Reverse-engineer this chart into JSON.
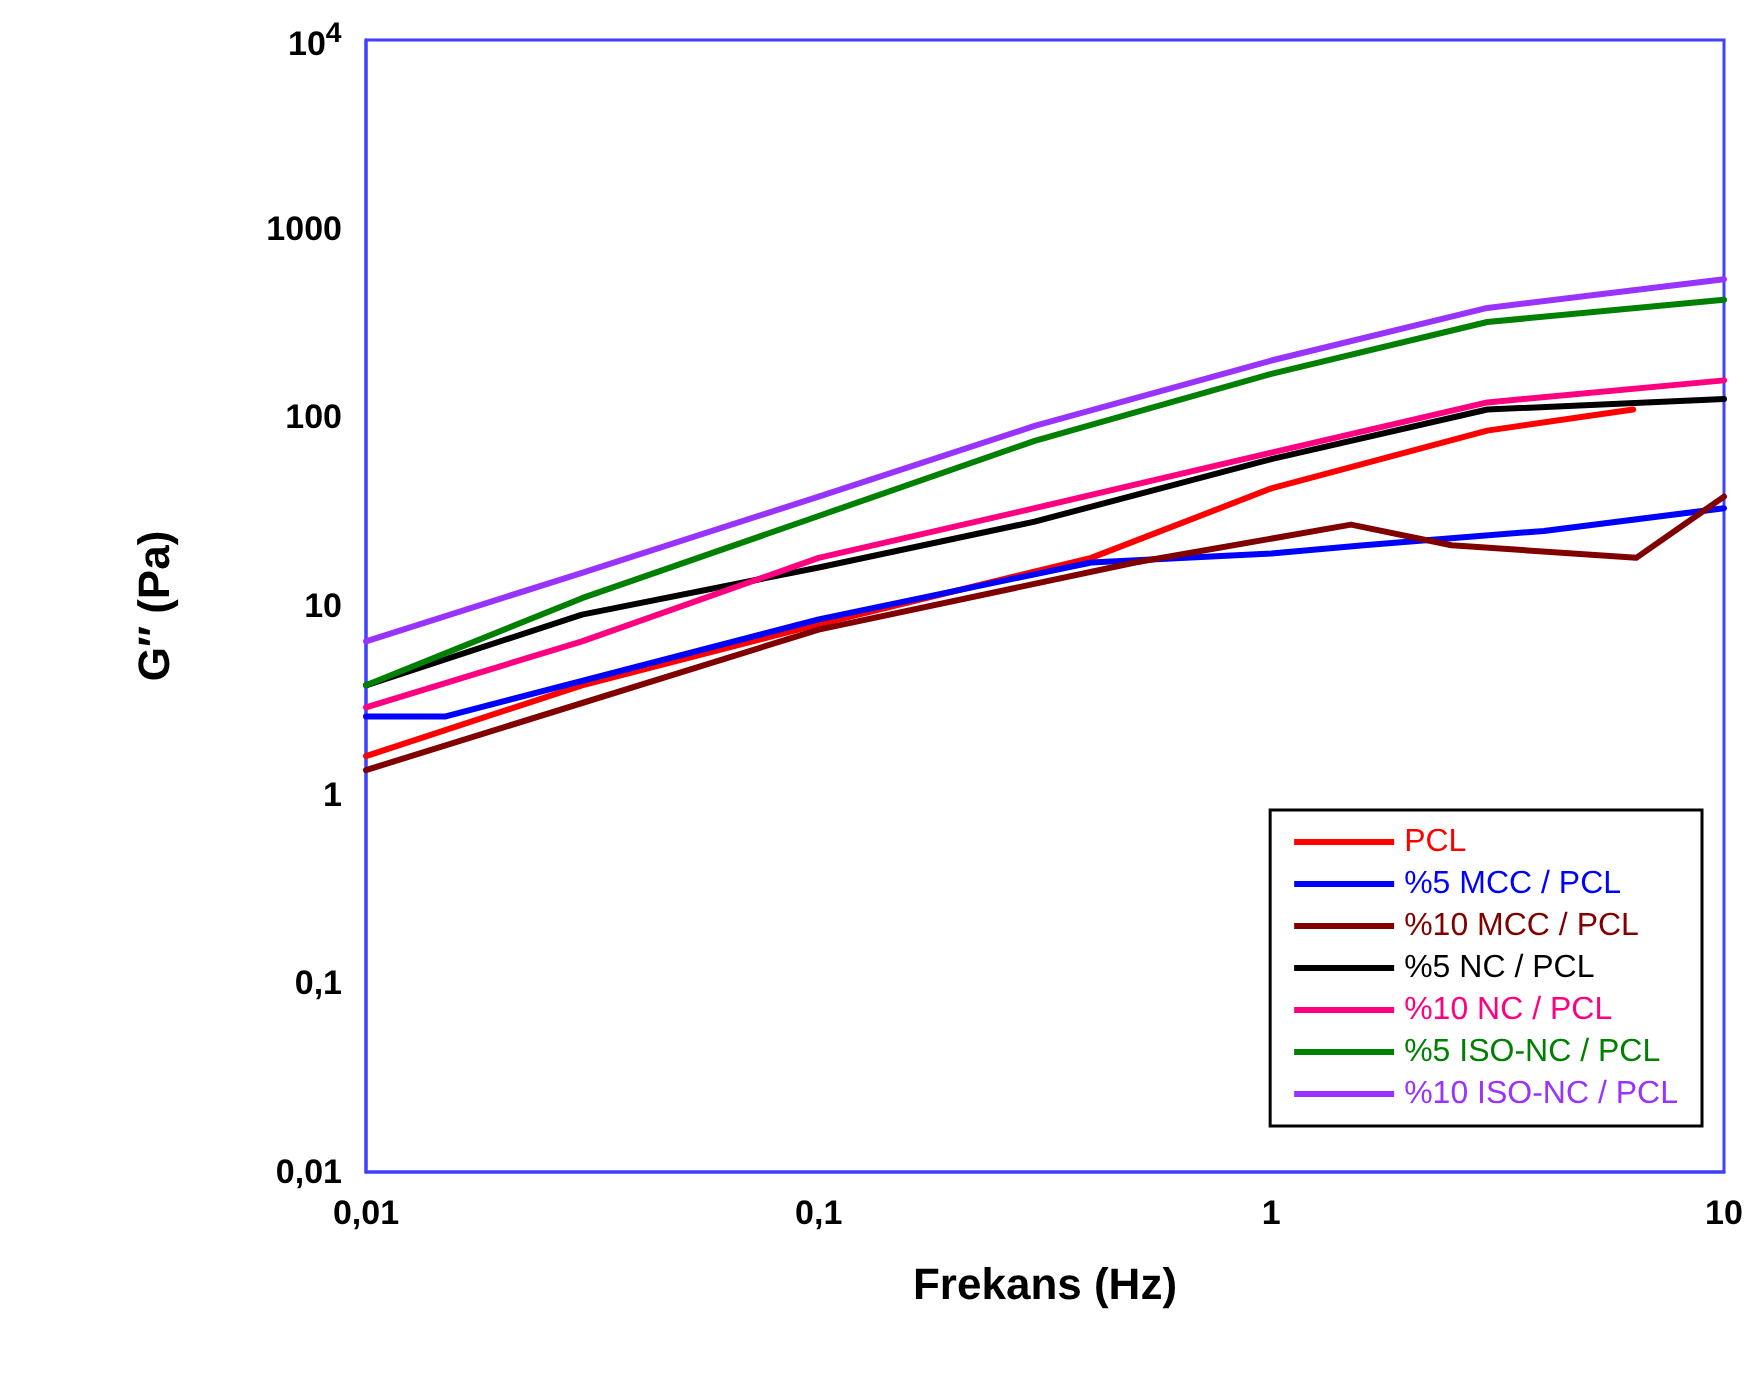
{
  "chart_data": {
    "type": "line",
    "xlabel": "Frekans (Hz)",
    "ylabel": "G″ (Pa)",
    "log": "xy",
    "grid": false,
    "legend": "bottom right",
    "marker": "none",
    "line_style": "solid",
    "xlim": [
      0.01,
      10
    ],
    "xticks": [
      {
        "value": 0.01,
        "label": "0,01"
      },
      {
        "value": 0.1,
        "label": "0,1"
      },
      1,
      10
    ],
    "ylim": [
      0.01,
      10000
    ],
    "yticks": [
      {
        "value": 0.01,
        "label": "0,01"
      },
      {
        "value": 0.1,
        "label": "0,1"
      },
      1,
      10,
      100,
      1000,
      {
        "value": 10000,
        "label": "10$^{4}$"
      }
    ],
    "series": [
      {
        "name": "PCL",
        "color": "#ff0000",
        "x": [
          0.01,
          0.03,
          0.1,
          0.4,
          1,
          3,
          6.3
        ],
        "values": [
          1.6,
          3.8,
          8,
          18,
          42,
          85,
          110
        ]
      },
      {
        "name": "%5 MCC / PCL",
        "color": "#0000ff",
        "x": [
          0.01,
          0.015,
          0.1,
          0.4,
          1,
          1.6,
          4,
          10
        ],
        "values": [
          2.6,
          2.6,
          8.5,
          17,
          19,
          21,
          25,
          33
        ]
      },
      {
        "name": "%10 MCC / PCL",
        "color": "#800000",
        "x": [
          0.01,
          0.1,
          0.5,
          1.5,
          2.5,
          6.4,
          10
        ],
        "values": [
          1.35,
          7.5,
          17,
          27,
          21,
          18,
          38
        ]
      },
      {
        "name": "%5 NC / PCL",
        "color": "#000000",
        "x": [
          0.01,
          0.03,
          0.1,
          0.3,
          1,
          3,
          10
        ],
        "values": [
          3.8,
          9,
          16,
          28,
          60,
          110,
          125
        ]
      },
      {
        "name": "%10 NC / PCL",
        "color": "#ff0080",
        "x": [
          0.01,
          0.03,
          0.1,
          0.3,
          1,
          3,
          10
        ],
        "values": [
          2.9,
          6.5,
          18,
          33,
          65,
          120,
          157
        ]
      },
      {
        "name": "%5 ISO-NC / PCL",
        "color": "#008000",
        "x": [
          0.01,
          0.03,
          0.1,
          0.3,
          1,
          3,
          10
        ],
        "values": [
          3.8,
          11,
          30,
          75,
          170,
          320,
          420
        ]
      },
      {
        "name": "%10 ISO-NC / PCL",
        "color": "#9933ff",
        "x": [
          0.01,
          0.03,
          0.1,
          0.3,
          1,
          3,
          10
        ],
        "values": [
          6.5,
          15,
          38,
          90,
          200,
          380,
          540
        ]
      }
    ]
  }
}
